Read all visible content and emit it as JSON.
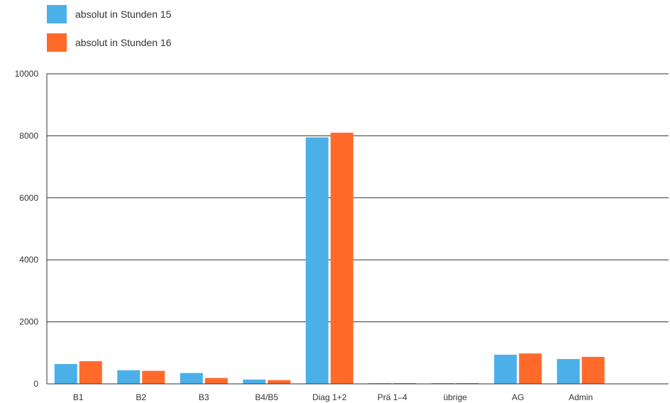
{
  "chart_data": {
    "type": "bar",
    "categories": [
      "B1",
      "B2",
      "B3",
      "B4/B5",
      "Diag 1+2",
      "Prä 1–4",
      "übrige",
      "AG",
      "Admin"
    ],
    "series": [
      {
        "name": "absolut in Stunden 15",
        "color": "#4cb0e8",
        "values": [
          640,
          440,
          350,
          140,
          7950,
          20,
          20,
          940,
          800
        ]
      },
      {
        "name": "absolut in Stunden 16",
        "color": "#ff6a2b",
        "values": [
          730,
          420,
          190,
          120,
          8100,
          25,
          25,
          980,
          870
        ]
      }
    ],
    "yticks": [
      0,
      2000,
      4000,
      6000,
      8000,
      10000
    ],
    "ylim": [
      0,
      10000
    ],
    "grid": true,
    "legend_position": "top-left"
  }
}
